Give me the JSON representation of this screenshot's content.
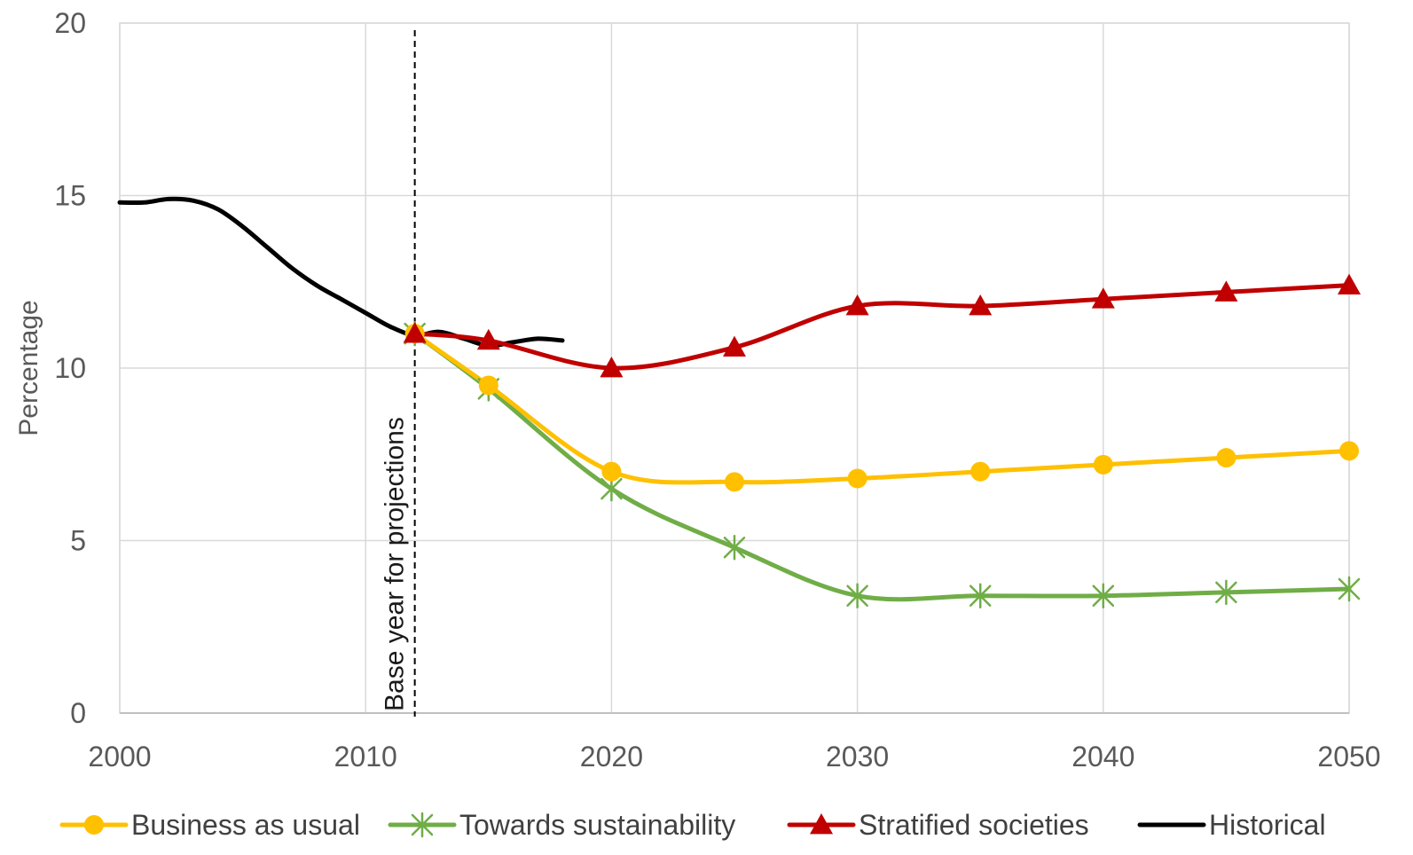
{
  "chart_data": {
    "type": "line",
    "title": "",
    "xlabel": "",
    "ylabel": "Percentage",
    "xlim": [
      2000,
      2050
    ],
    "ylim": [
      0,
      20
    ],
    "x_ticks": [
      2000,
      2010,
      2020,
      2030,
      2040,
      2050
    ],
    "y_ticks": [
      0,
      5,
      10,
      15,
      20
    ],
    "grid": true,
    "legend_position": "bottom",
    "annotation": {
      "text": "Base year for projections",
      "x": 2012,
      "style": "dashed vertical line"
    },
    "series": [
      {
        "name": "Business as usual",
        "color": "#FFC000",
        "marker": "circle",
        "x": [
          2012,
          2015,
          2020,
          2025,
          2030,
          2035,
          2040,
          2045,
          2050
        ],
        "y": [
          11.0,
          9.5,
          7.0,
          6.7,
          6.8,
          7.0,
          7.2,
          7.4,
          7.6
        ]
      },
      {
        "name": "Towards sustainability",
        "color": "#70AD47",
        "marker": "x-star",
        "x": [
          2012,
          2015,
          2020,
          2025,
          2030,
          2035,
          2040,
          2045,
          2050
        ],
        "y": [
          11.0,
          9.4,
          6.5,
          4.8,
          3.4,
          3.4,
          3.4,
          3.5,
          3.6
        ]
      },
      {
        "name": "Stratified societies",
        "color": "#C00000",
        "marker": "triangle",
        "x": [
          2012,
          2015,
          2020,
          2025,
          2030,
          2035,
          2040,
          2045,
          2050
        ],
        "y": [
          11.0,
          10.8,
          10.0,
          10.6,
          11.8,
          11.8,
          12.0,
          12.2,
          12.4
        ]
      },
      {
        "name": "Historical",
        "color": "#000000",
        "marker": "none",
        "x": [
          2000,
          2001,
          2002,
          2003,
          2004,
          2005,
          2006,
          2007,
          2008,
          2009,
          2010,
          2011,
          2012,
          2013,
          2014,
          2015,
          2016,
          2017,
          2018
        ],
        "y": [
          14.8,
          14.8,
          14.9,
          14.85,
          14.6,
          14.1,
          13.5,
          12.9,
          12.4,
          12.0,
          11.6,
          11.2,
          10.95,
          11.05,
          10.85,
          10.65,
          10.75,
          10.85,
          10.8
        ]
      }
    ]
  }
}
